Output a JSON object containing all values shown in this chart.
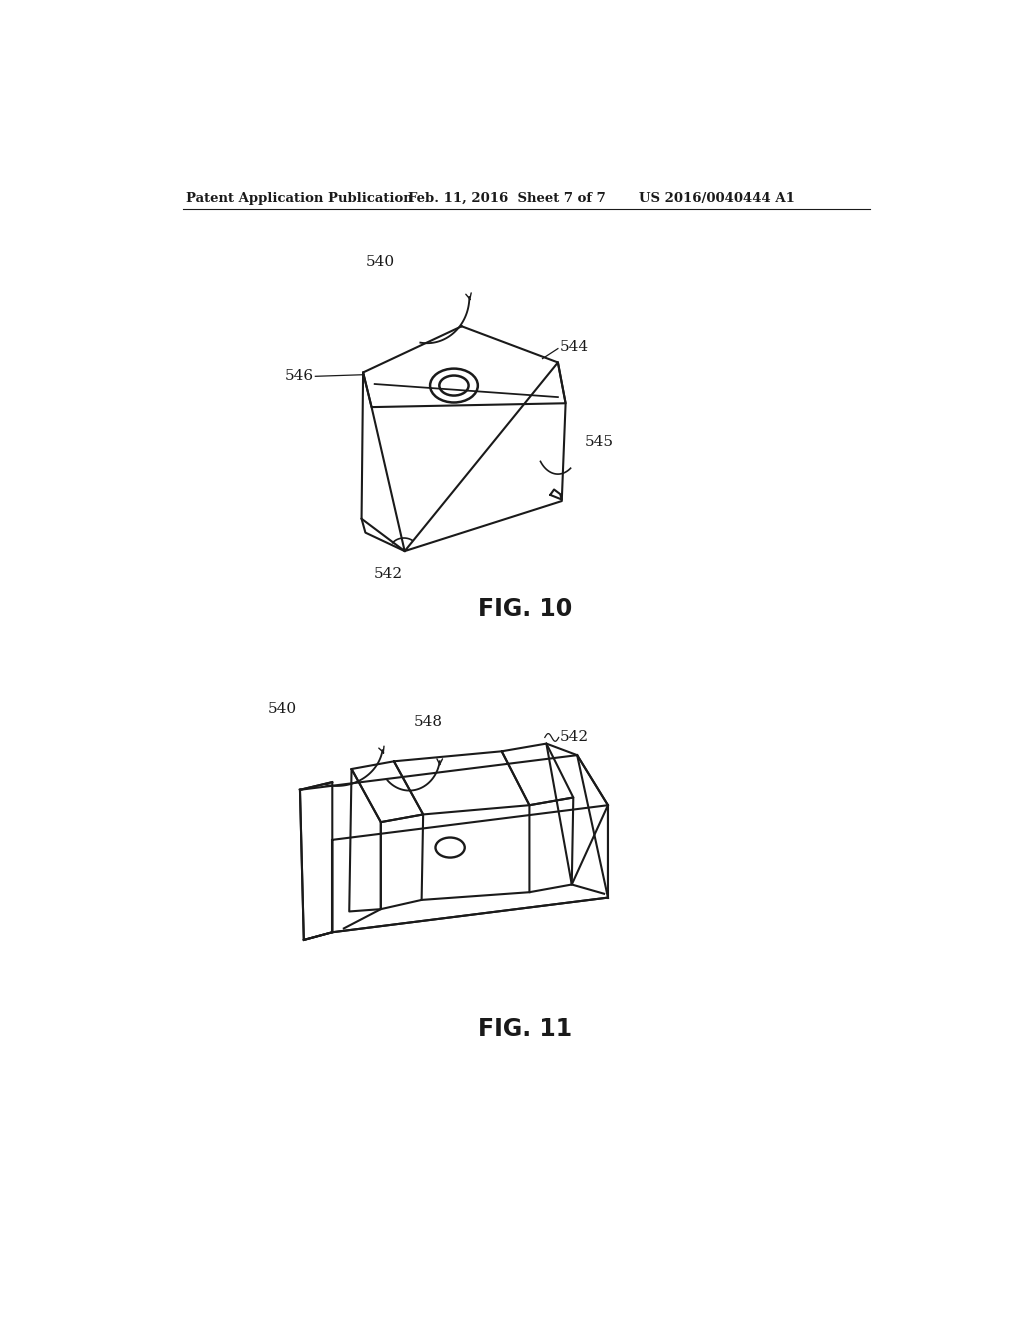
{
  "bg_color": "#ffffff",
  "line_color": "#1a1a1a",
  "header_left": "Patent Application Publication",
  "header_mid": "Feb. 11, 2016  Sheet 7 of 7",
  "header_right": "US 2016/0040444 A1",
  "fig10_label": "FIG. 10",
  "fig11_label": "FIG. 11",
  "lw": 1.5
}
